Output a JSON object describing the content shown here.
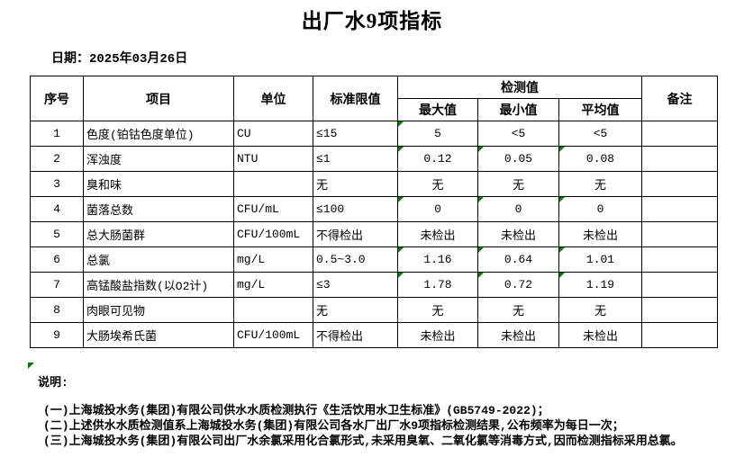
{
  "title": "出厂水9项指标",
  "date_label": "日期：2025年03月26日",
  "table": {
    "headers": {
      "no": "序号",
      "item": "项目",
      "unit": "单位",
      "limit": "标准限值",
      "detection": "检测值",
      "max": "最大值",
      "min": "最小值",
      "avg": "平均值",
      "remark": "备注"
    },
    "rows": [
      {
        "no": "1",
        "item": "色度(铂钴色度单位)",
        "unit": "CU",
        "limit": "≤15",
        "max": "5",
        "min": "<5",
        "avg": "<5",
        "remark": "",
        "flags": {
          "max": true
        }
      },
      {
        "no": "2",
        "item": "浑浊度",
        "unit": "NTU",
        "limit": "≤1",
        "max": "0.12",
        "min": "0.05",
        "avg": "0.08",
        "remark": "",
        "flags": {
          "max": true,
          "min": true,
          "avg": true
        }
      },
      {
        "no": "3",
        "item": "臭和味",
        "unit": "",
        "limit": "无",
        "max": "无",
        "min": "无",
        "avg": "无",
        "remark": "",
        "flags": {}
      },
      {
        "no": "4",
        "item": "菌落总数",
        "unit": "CFU/mL",
        "limit": "≤100",
        "max": "0",
        "min": "0",
        "avg": "0",
        "remark": "",
        "flags": {
          "max": true,
          "min": true,
          "avg": true
        }
      },
      {
        "no": "5",
        "item": "总大肠菌群",
        "unit": "CFU/100mL",
        "limit": "不得检出",
        "max": "未检出",
        "min": "未检出",
        "avg": "未检出",
        "remark": "",
        "flags": {}
      },
      {
        "no": "6",
        "item": "总氯",
        "unit": "mg/L",
        "limit": "0.5~3.0",
        "max": "1.16",
        "min": "0.64",
        "avg": "1.01",
        "remark": "",
        "flags": {
          "max": true,
          "min": true,
          "avg": true
        }
      },
      {
        "no": "7",
        "item": "高锰酸盐指数(以O2计)",
        "unit": "mg/L",
        "limit": "≤3",
        "max": "1.78",
        "min": "0.72",
        "avg": "1.19",
        "remark": "",
        "flags": {
          "max": true,
          "min": true,
          "avg": true
        }
      },
      {
        "no": "8",
        "item": "肉眼可见物",
        "unit": "",
        "limit": "无",
        "max": "无",
        "min": "无",
        "avg": "无",
        "remark": "",
        "flags": {}
      },
      {
        "no": "9",
        "item": "大肠埃希氏菌",
        "unit": "CFU/100mL",
        "limit": "不得检出",
        "max": "未检出",
        "min": "未检出",
        "avg": "未检出",
        "remark": "",
        "flags": {}
      }
    ]
  },
  "notes": {
    "label": "说明:",
    "lines": [
      "(一)上海城投水务(集团)有限公司供水水质检测执行《生活饮用水卫生标准》(GB5749-2022)；",
      "(二)上述供水水质检测值系上海城投水务(集团)有限公司各水厂出厂水9项指标检测结果,公布频率为每日一次；",
      "(三)上海城投水务(集团)有限公司出厂水余氯采用化合氯形式,未采用臭氧、二氧化氯等消毒方式,因而检测指标采用总氯。"
    ]
  },
  "colors": {
    "background": "#ffffff",
    "text": "#000000",
    "border": "#000000",
    "flag_green": "#008000"
  }
}
